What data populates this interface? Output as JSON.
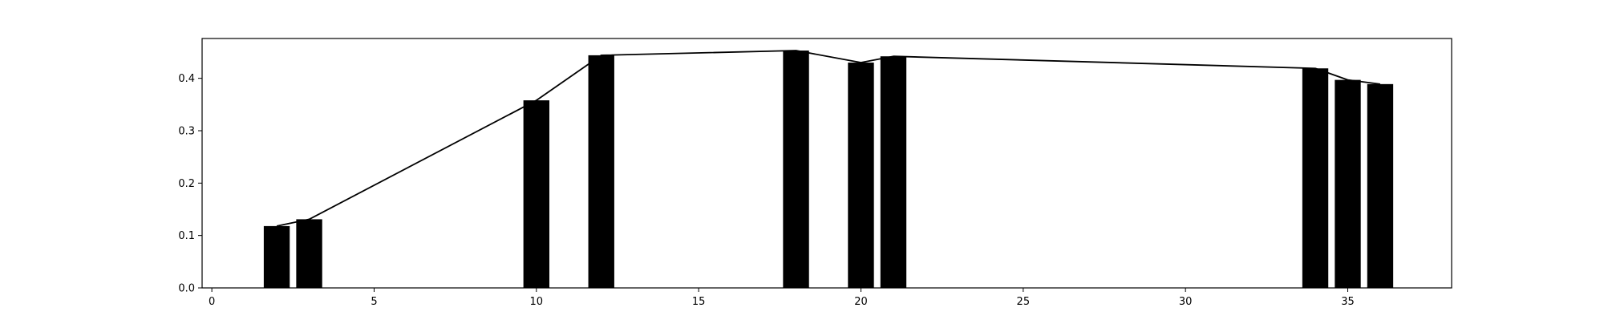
{
  "chart_data": {
    "type": "bar",
    "title": "",
    "xlabel": "",
    "ylabel": "",
    "xlim": [
      -0.3,
      38.2
    ],
    "ylim": [
      0.0,
      0.476
    ],
    "x_ticks": [
      0,
      5,
      10,
      15,
      20,
      25,
      30,
      35
    ],
    "y_ticks": [
      0.0,
      0.1,
      0.2,
      0.3,
      0.4
    ],
    "grid": false,
    "bar_width": 0.8,
    "bar_color": "#000000",
    "line_color": "#000000",
    "series": [
      {
        "type": "bar",
        "x": [
          2,
          3,
          10,
          12,
          18,
          20,
          21,
          34,
          35,
          36
        ],
        "values": [
          0.118,
          0.131,
          0.358,
          0.444,
          0.453,
          0.43,
          0.442,
          0.419,
          0.397,
          0.389
        ]
      },
      {
        "type": "line",
        "x": [
          2,
          3,
          10,
          12,
          18,
          20,
          21,
          34,
          35,
          36
        ],
        "values": [
          0.118,
          0.131,
          0.358,
          0.444,
          0.453,
          0.43,
          0.442,
          0.419,
          0.397,
          0.389
        ]
      }
    ]
  }
}
